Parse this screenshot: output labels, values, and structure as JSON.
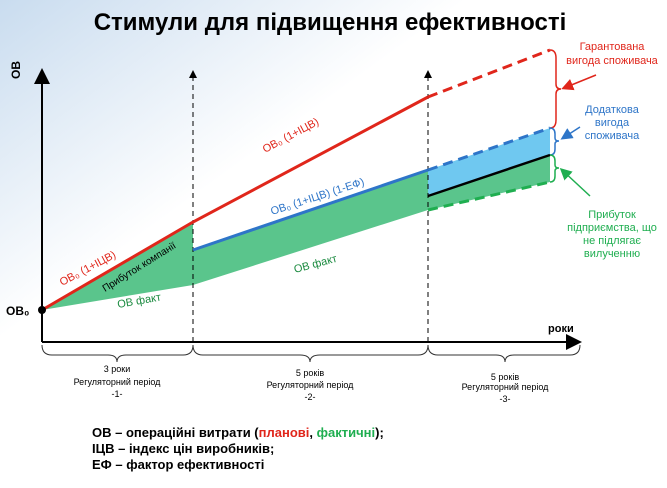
{
  "title": "Стимули для підвищення ефективності",
  "axes": {
    "y_label": "ОВ",
    "x_label": "роки",
    "origin_label": "ОВ₀"
  },
  "lines": {
    "planned_upper": "ОВ₀ (1+ІЦВ)",
    "planned_lower": "ОВ₀ (1+ІЦВ)",
    "efficiency": "ОВ₀ (1+ІЦВ) (1-ЕФ)",
    "fact_upper": "ОВ факт",
    "fact_lower": "ОВ факт",
    "company_profit": "Прибуток компанії"
  },
  "annotations": {
    "guaranteed": [
      "Гарантована",
      "вигода споживача"
    ],
    "additional": [
      "Додаткова",
      "вигода",
      "споживача"
    ],
    "profit": [
      "Прибуток",
      "підприємства, що",
      "не підлягає",
      "вилученню"
    ]
  },
  "periods": [
    {
      "duration": "3 роки",
      "name": "Регуляторний період",
      "number": "-1-"
    },
    {
      "duration": "5 років",
      "name": "Регуляторний період",
      "number": "-2-"
    },
    {
      "duration": "5 років",
      "name": "Регуляторний період",
      "number": "-3-"
    }
  ],
  "legend": {
    "line1": {
      "start": "ОВ – операційні витрати (",
      "planned": "планові",
      "sep": ", ",
      "actual": "фактичні",
      "end": ");"
    },
    "line2": "ІЦВ – індекс цін виробників;",
    "line3": "ЕФ – фактор ефективності"
  }
}
